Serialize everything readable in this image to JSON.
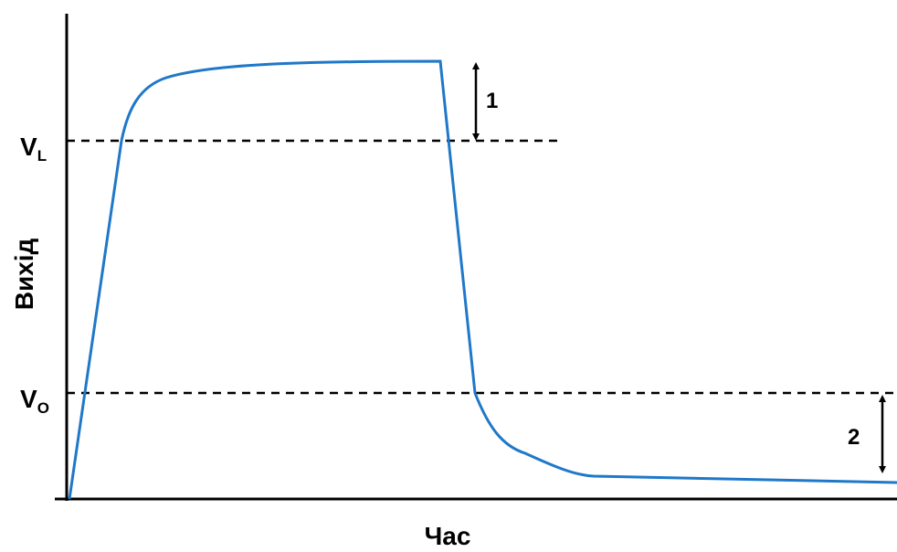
{
  "diagram": {
    "x_axis_label": "Час",
    "y_axis_label": "Вихід",
    "level_high": {
      "letter": "V",
      "subscript": "L"
    },
    "level_low": {
      "letter": "V",
      "subscript": "O"
    },
    "marker_1": "1",
    "marker_2": "2",
    "colors": {
      "curve": "#1f78c8",
      "axes": "#000000",
      "dashed": "#000000"
    }
  }
}
